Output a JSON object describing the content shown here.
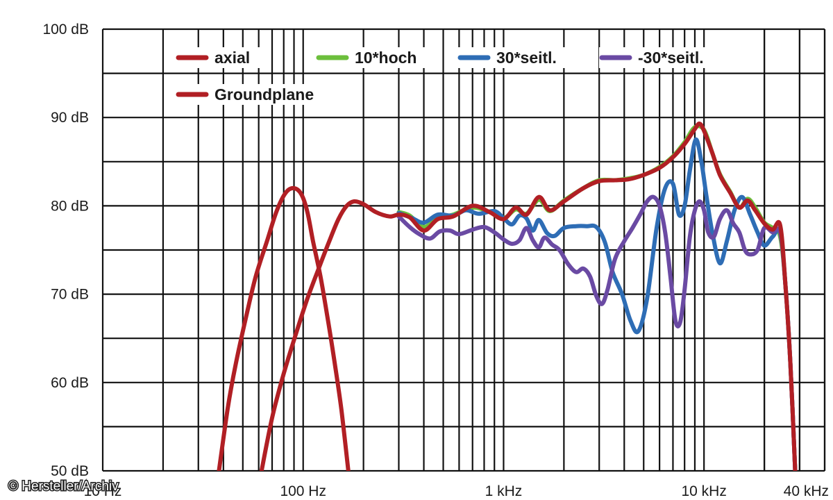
{
  "credit": "© Hersteller/Archiv",
  "chart_data": {
    "type": "line",
    "xscale": "log",
    "xlim": [
      10,
      40000
    ],
    "ylim": [
      50,
      100
    ],
    "grid": true,
    "ytick_labels": [
      {
        "value": 100,
        "label": "100 dB"
      },
      {
        "value": 90,
        "label": "90 dB"
      },
      {
        "value": 80,
        "label": "80 dB"
      },
      {
        "value": 70,
        "label": "70 dB"
      },
      {
        "value": 60,
        "label": "60 dB"
      },
      {
        "value": 50,
        "label": "50 dB"
      }
    ],
    "xtick_labels": [
      {
        "value": 10,
        "label": "10 Hz"
      },
      {
        "value": 100,
        "label": "100 Hz"
      },
      {
        "value": 1000,
        "label": "1 kHz"
      },
      {
        "value": 10000,
        "label": "10 kHz"
      },
      {
        "value": 40000,
        "label": "40 kHz"
      }
    ],
    "legend": {
      "placement": "top"
    },
    "series": [
      {
        "name": "10*hoch",
        "color": "#6cbf3c",
        "points": [
          [
            300,
            79.3
          ],
          [
            340,
            78.9
          ],
          [
            400,
            77.6
          ],
          [
            470,
            78.6
          ],
          [
            560,
            79.0
          ],
          [
            700,
            79.8
          ],
          [
            850,
            79.3
          ],
          [
            1000,
            78.6
          ],
          [
            1150,
            79.6
          ],
          [
            1300,
            79.1
          ],
          [
            1500,
            80.7
          ],
          [
            1700,
            79.4
          ],
          [
            2000,
            80.6
          ],
          [
            2500,
            82.0
          ],
          [
            3000,
            82.9
          ],
          [
            3600,
            82.9
          ],
          [
            4200,
            83.1
          ],
          [
            5000,
            83.5
          ],
          [
            6000,
            84.4
          ],
          [
            7000,
            85.6
          ],
          [
            8000,
            87.2
          ],
          [
            9000,
            88.9
          ],
          [
            10000,
            88.6
          ],
          [
            11000,
            86.0
          ],
          [
            12000,
            83.6
          ],
          [
            13500,
            81.6
          ],
          [
            15000,
            79.8
          ],
          [
            16500,
            80.8
          ],
          [
            18000,
            79.8
          ],
          [
            20000,
            78.1
          ],
          [
            22000,
            77.5
          ],
          [
            24000,
            76.5
          ],
          [
            25500,
            71.0
          ],
          [
            27000,
            62.0
          ],
          [
            28500,
            50.0
          ]
        ]
      },
      {
        "name": "30*seitl.",
        "color": "#2e6db5",
        "points": [
          [
            300,
            79.2
          ],
          [
            350,
            78.6
          ],
          [
            400,
            78.1
          ],
          [
            470,
            79.0
          ],
          [
            560,
            78.9
          ],
          [
            650,
            79.5
          ],
          [
            750,
            79.1
          ],
          [
            900,
            79.4
          ],
          [
            1000,
            78.6
          ],
          [
            1100,
            77.9
          ],
          [
            1200,
            78.9
          ],
          [
            1300,
            78.6
          ],
          [
            1400,
            77.2
          ],
          [
            1500,
            78.4
          ],
          [
            1650,
            76.9
          ],
          [
            1800,
            76.6
          ],
          [
            2000,
            77.5
          ],
          [
            2300,
            77.7
          ],
          [
            2600,
            77.7
          ],
          [
            2900,
            77.6
          ],
          [
            3200,
            75.9
          ],
          [
            3500,
            72.5
          ],
          [
            3900,
            70.0
          ],
          [
            4300,
            67.0
          ],
          [
            4700,
            65.8
          ],
          [
            5200,
            69.5
          ],
          [
            5800,
            77.5
          ],
          [
            6400,
            82.0
          ],
          [
            7000,
            82.5
          ],
          [
            7500,
            79.0
          ],
          [
            8000,
            80.0
          ],
          [
            8500,
            84.0
          ],
          [
            9100,
            87.5
          ],
          [
            9700,
            85.0
          ],
          [
            10300,
            81.0
          ],
          [
            11000,
            77.0
          ],
          [
            12000,
            73.5
          ],
          [
            13000,
            76.0
          ],
          [
            14200,
            79.5
          ],
          [
            15500,
            81.0
          ],
          [
            17000,
            79.0
          ],
          [
            18500,
            77.0
          ],
          [
            20000,
            75.5
          ],
          [
            22000,
            76.5
          ],
          [
            24000,
            77.0
          ],
          [
            25500,
            71.0
          ],
          [
            27000,
            62.0
          ],
          [
            28500,
            50.0
          ]
        ]
      },
      {
        "name": "-30*seitl.",
        "color": "#6a4aa3",
        "points": [
          [
            300,
            78.8
          ],
          [
            340,
            77.6
          ],
          [
            380,
            76.8
          ],
          [
            430,
            76.3
          ],
          [
            480,
            77.1
          ],
          [
            540,
            77.2
          ],
          [
            600,
            76.8
          ],
          [
            700,
            77.3
          ],
          [
            800,
            77.6
          ],
          [
            900,
            77.0
          ],
          [
            1000,
            76.2
          ],
          [
            1100,
            75.7
          ],
          [
            1200,
            76.1
          ],
          [
            1300,
            77.5
          ],
          [
            1400,
            76.1
          ],
          [
            1500,
            75.3
          ],
          [
            1600,
            76.4
          ],
          [
            1750,
            75.6
          ],
          [
            1900,
            75.0
          ],
          [
            2100,
            73.4
          ],
          [
            2300,
            72.5
          ],
          [
            2500,
            72.9
          ],
          [
            2700,
            72.0
          ],
          [
            2900,
            69.8
          ],
          [
            3100,
            68.9
          ],
          [
            3300,
            70.5
          ],
          [
            3600,
            74.0
          ],
          [
            4000,
            76.0
          ],
          [
            4400,
            77.5
          ],
          [
            4800,
            79.0
          ],
          [
            5200,
            80.5
          ],
          [
            5600,
            81.0
          ],
          [
            6000,
            80.0
          ],
          [
            6400,
            77.0
          ],
          [
            6800,
            72.0
          ],
          [
            7200,
            67.0
          ],
          [
            7600,
            66.8
          ],
          [
            8000,
            70.5
          ],
          [
            8500,
            76.5
          ],
          [
            9000,
            79.5
          ],
          [
            9500,
            80.5
          ],
          [
            10000,
            79.5
          ],
          [
            10500,
            77.0
          ],
          [
            11200,
            76.5
          ],
          [
            12000,
            78.5
          ],
          [
            13000,
            79.5
          ],
          [
            14000,
            78.0
          ],
          [
            15000,
            77.0
          ],
          [
            16000,
            75.0
          ],
          [
            17000,
            74.5
          ],
          [
            18500,
            75.0
          ],
          [
            20000,
            77.5
          ],
          [
            22000,
            77.0
          ],
          [
            24000,
            77.0
          ],
          [
            25500,
            71.0
          ],
          [
            27000,
            62.0
          ],
          [
            28500,
            50.0
          ]
        ]
      },
      {
        "name": "axial",
        "color": "#b11f24",
        "points": [
          [
            38,
            50
          ],
          [
            42,
            57
          ],
          [
            46,
            62
          ],
          [
            52,
            67.5
          ],
          [
            58,
            72
          ],
          [
            66,
            76
          ],
          [
            74,
            79.5
          ],
          [
            82,
            81.5
          ],
          [
            90,
            82.0
          ],
          [
            98,
            81.3
          ],
          [
            105,
            79.3
          ],
          [
            112,
            76
          ],
          [
            122,
            72
          ],
          [
            132,
            67.5
          ],
          [
            143,
            62.5
          ],
          [
            155,
            57
          ],
          [
            168,
            50
          ]
        ]
      },
      {
        "name": "Groundplane",
        "color": "#b11f24",
        "points": [
          [
            62,
            50
          ],
          [
            70,
            56
          ],
          [
            80,
            61
          ],
          [
            92,
            65.5
          ],
          [
            105,
            69.5
          ],
          [
            120,
            73
          ],
          [
            135,
            76
          ],
          [
            150,
            78.5
          ],
          [
            165,
            80.0
          ],
          [
            180,
            80.5
          ],
          [
            200,
            80.2
          ],
          [
            230,
            79.3
          ],
          [
            270,
            78.8
          ],
          [
            300,
            79.0
          ],
          [
            340,
            78.7
          ],
          [
            400,
            77.2
          ],
          [
            470,
            78.5
          ],
          [
            560,
            78.8
          ],
          [
            700,
            80.0
          ],
          [
            850,
            79.3
          ],
          [
            1000,
            78.5
          ],
          [
            1150,
            79.8
          ],
          [
            1300,
            79.0
          ],
          [
            1500,
            81.0
          ],
          [
            1700,
            79.5
          ],
          [
            2000,
            80.5
          ],
          [
            2500,
            82.0
          ],
          [
            3000,
            82.8
          ],
          [
            3600,
            82.9
          ],
          [
            4200,
            83.0
          ],
          [
            5000,
            83.5
          ],
          [
            6000,
            84.3
          ],
          [
            7000,
            85.5
          ],
          [
            8000,
            87.0
          ],
          [
            9000,
            88.7
          ],
          [
            9500,
            89.3
          ],
          [
            10000,
            88.5
          ],
          [
            11000,
            86.0
          ],
          [
            12000,
            83.5
          ],
          [
            13500,
            81.5
          ],
          [
            15000,
            79.8
          ],
          [
            16500,
            80.6
          ],
          [
            18000,
            79.5
          ],
          [
            20000,
            78.0
          ],
          [
            22000,
            77.3
          ],
          [
            24000,
            77.8
          ],
          [
            25500,
            71.0
          ],
          [
            27000,
            62.0
          ],
          [
            28500,
            50.0
          ]
        ]
      }
    ]
  }
}
